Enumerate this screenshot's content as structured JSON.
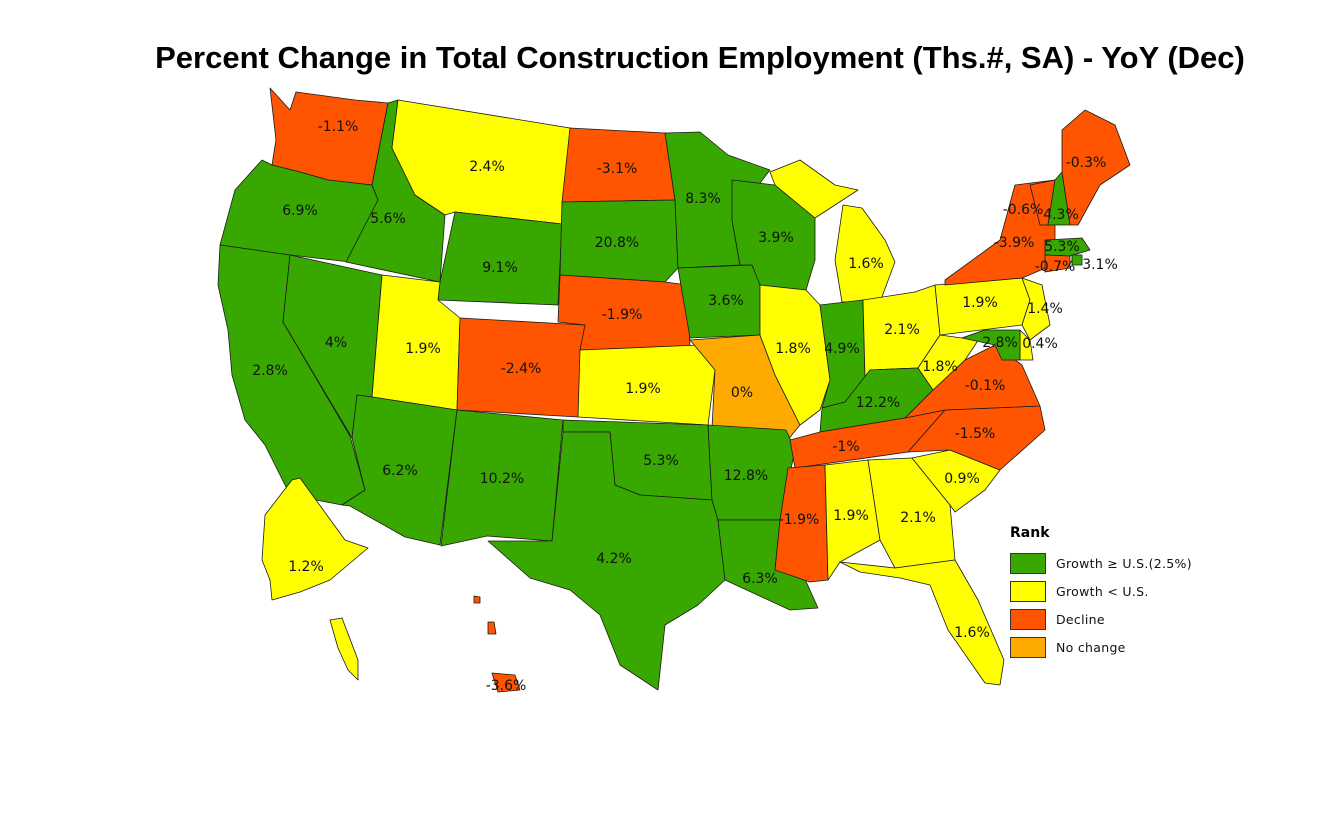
{
  "title": "Percent Change in Total Construction Employment (Ths.#, SA) - YoY (Dec)",
  "colors": {
    "growth_above": "#38A800",
    "growth_below": "#FFFF00",
    "decline": "#FF5500",
    "no_change": "#FFAA00"
  },
  "legend": {
    "title": "Rank",
    "items": [
      {
        "key": "growth_above",
        "label": "Growth ≥ U.S.(2.5%)"
      },
      {
        "key": "growth_below",
        "label": "Growth < U.S."
      },
      {
        "key": "decline",
        "label": "Decline"
      },
      {
        "key": "no_change",
        "label": "No change"
      }
    ]
  },
  "states": [
    {
      "id": "WA",
      "value": "-1.1%",
      "cat": "decline"
    },
    {
      "id": "OR",
      "value": "6.9%",
      "cat": "growth_above"
    },
    {
      "id": "CA",
      "value": "2.8%",
      "cat": "growth_above"
    },
    {
      "id": "NV",
      "value": "4%",
      "cat": "growth_above"
    },
    {
      "id": "ID",
      "value": "5.6%",
      "cat": "growth_above"
    },
    {
      "id": "MT",
      "value": "2.4%",
      "cat": "growth_below"
    },
    {
      "id": "WY",
      "value": "9.1%",
      "cat": "growth_above"
    },
    {
      "id": "UT",
      "value": "1.9%",
      "cat": "growth_below"
    },
    {
      "id": "AZ",
      "value": "6.2%",
      "cat": "growth_above"
    },
    {
      "id": "CO",
      "value": "-2.4%",
      "cat": "decline"
    },
    {
      "id": "NM",
      "value": "10.2%",
      "cat": "growth_above"
    },
    {
      "id": "ND",
      "value": "-3.1%",
      "cat": "decline"
    },
    {
      "id": "SD",
      "value": "20.8%",
      "cat": "growth_above"
    },
    {
      "id": "NE",
      "value": "-1.9%",
      "cat": "decline"
    },
    {
      "id": "KS",
      "value": "1.9%",
      "cat": "growth_below"
    },
    {
      "id": "OK",
      "value": "5.3%",
      "cat": "growth_above"
    },
    {
      "id": "TX",
      "value": "4.2%",
      "cat": "growth_above"
    },
    {
      "id": "MN",
      "value": "8.3%",
      "cat": "growth_above"
    },
    {
      "id": "IA",
      "value": "3.6%",
      "cat": "growth_above"
    },
    {
      "id": "MO",
      "value": "0%",
      "cat": "no_change"
    },
    {
      "id": "AR",
      "value": "12.8%",
      "cat": "growth_above"
    },
    {
      "id": "LA",
      "value": "6.3%",
      "cat": "growth_above"
    },
    {
      "id": "WI",
      "value": "3.9%",
      "cat": "growth_above"
    },
    {
      "id": "IL",
      "value": "1.8%",
      "cat": "growth_below"
    },
    {
      "id": "MI",
      "value": "1.6%",
      "cat": "growth_below"
    },
    {
      "id": "IN",
      "value": "4.9%",
      "cat": "growth_above"
    },
    {
      "id": "OH",
      "value": "2.1%",
      "cat": "growth_below"
    },
    {
      "id": "KY",
      "value": "12.2%",
      "cat": "growth_above"
    },
    {
      "id": "TN",
      "value": "-1%",
      "cat": "decline"
    },
    {
      "id": "MS",
      "value": "-1.9%",
      "cat": "decline"
    },
    {
      "id": "AL",
      "value": "1.9%",
      "cat": "growth_below"
    },
    {
      "id": "GA",
      "value": "2.1%",
      "cat": "growth_below"
    },
    {
      "id": "FL",
      "value": "1.6%",
      "cat": "growth_below"
    },
    {
      "id": "SC",
      "value": "0.9%",
      "cat": "growth_below"
    },
    {
      "id": "NC",
      "value": "-1.5%",
      "cat": "decline"
    },
    {
      "id": "VA",
      "value": "-0.1%",
      "cat": "decline"
    },
    {
      "id": "WV",
      "value": "1.8%",
      "cat": "growth_below"
    },
    {
      "id": "PA",
      "value": "1.9%",
      "cat": "growth_below"
    },
    {
      "id": "NY",
      "value": "-3.9%",
      "cat": "decline"
    },
    {
      "id": "VT",
      "value": "-0.6%",
      "cat": "decline"
    },
    {
      "id": "NH",
      "value": "4.3%",
      "cat": "growth_above"
    },
    {
      "id": "ME",
      "value": "-0.3%",
      "cat": "decline"
    },
    {
      "id": "MA",
      "value": "5.3%",
      "cat": "growth_above"
    },
    {
      "id": "RI",
      "value": "3.1%",
      "cat": "growth_above"
    },
    {
      "id": "CT",
      "value": "-0.7%",
      "cat": "decline"
    },
    {
      "id": "NJ",
      "value": "1.4%",
      "cat": "growth_below"
    },
    {
      "id": "DE",
      "value": "0.4%",
      "cat": "growth_below"
    },
    {
      "id": "MD",
      "value": "2.8%",
      "cat": "growth_above"
    },
    {
      "id": "AK",
      "value": "1.2%",
      "cat": "growth_below"
    },
    {
      "id": "HI",
      "value": "-3.6%",
      "cat": "decline"
    }
  ]
}
